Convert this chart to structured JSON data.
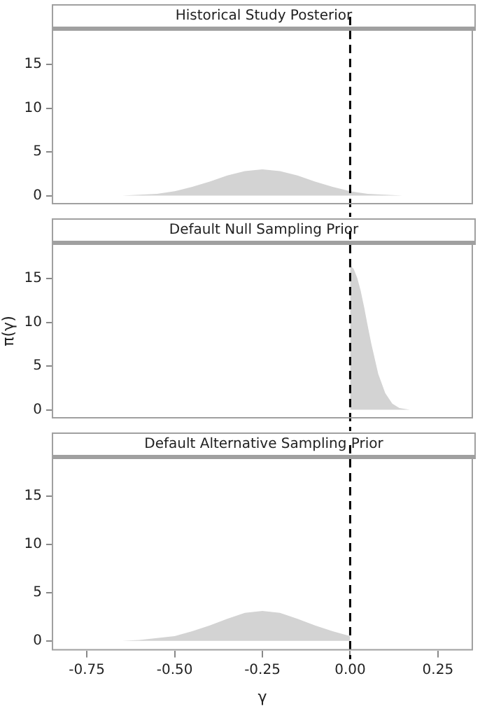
{
  "chart_data": [
    {
      "type": "area",
      "title": "Historical Study Posterior",
      "xlim": [
        -0.85,
        0.35
      ],
      "ylim": [
        -1,
        19
      ],
      "yticks": [
        0,
        5,
        10,
        15
      ],
      "tick_labels": "y",
      "legend": false,
      "grid": false,
      "series": [
        {
          "color": "#d3d3d3",
          "x": [
            -0.65,
            -0.6,
            -0.55,
            -0.5,
            -0.45,
            -0.4,
            -0.35,
            -0.3,
            -0.25,
            -0.2,
            -0.15,
            -0.1,
            -0.05,
            0,
            0.05,
            0.1,
            0.15
          ],
          "values": [
            0,
            0.1,
            0.2,
            0.5,
            1,
            1.6,
            2.3,
            2.8,
            3,
            2.8,
            2.3,
            1.6,
            1,
            0.5,
            0.2,
            0.1,
            0
          ]
        }
      ],
      "ref_lines": [
        {
          "axis": "x",
          "value": 0,
          "color": "#000000",
          "line_style": "dashed"
        }
      ]
    },
    {
      "type": "area",
      "title": "Default Null Sampling Prior",
      "ylabel": "π(γ)",
      "xlim": [
        -0.85,
        0.35
      ],
      "ylim": [
        -1,
        19
      ],
      "yticks": [
        0,
        5,
        10,
        15
      ],
      "tick_labels": "y",
      "legend": false,
      "grid": false,
      "series": [
        {
          "color": "#d3d3d3",
          "x": [
            0,
            0.01,
            0.02,
            0.03,
            0.04,
            0.05,
            0.06,
            0.08,
            0.1,
            0.12,
            0.14,
            0.17,
            0.25
          ],
          "values": [
            16.5,
            16.1,
            15.1,
            13.6,
            11.7,
            9.6,
            7.6,
            4.1,
            1.9,
            0.7,
            0.2,
            0,
            0
          ]
        }
      ],
      "ref_lines": [
        {
          "axis": "x",
          "value": 0,
          "color": "#000000",
          "line_style": "dashed"
        }
      ]
    },
    {
      "type": "area",
      "title": "Default Alternative Sampling Prior",
      "xlabel": "γ",
      "xlim": [
        -0.85,
        0.35
      ],
      "xticks": [
        {
          "value": -0.75,
          "label": "-0.75"
        },
        {
          "value": -0.5,
          "label": "-0.50"
        },
        {
          "value": -0.25,
          "label": "-0.25"
        },
        {
          "value": 0,
          "label": "0.00"
        },
        {
          "value": 0.25,
          "label": "0.25"
        }
      ],
      "ylim": [
        -1,
        19
      ],
      "yticks": [
        0,
        5,
        10,
        15
      ],
      "legend": false,
      "grid": false,
      "series": [
        {
          "color": "#d3d3d3",
          "x": [
            -0.65,
            -0.6,
            -0.55,
            -0.5,
            -0.45,
            -0.4,
            -0.35,
            -0.3,
            -0.25,
            -0.2,
            -0.15,
            -0.1,
            -0.05,
            0,
            0
          ],
          "values": [
            0,
            0.1,
            0.3,
            0.5,
            1,
            1.6,
            2.3,
            2.9,
            3.1,
            2.9,
            2.3,
            1.6,
            1,
            0.5,
            0
          ]
        }
      ],
      "ref_lines": [
        {
          "axis": "x",
          "value": 0,
          "color": "#000000",
          "line_style": "dashed"
        }
      ]
    }
  ]
}
